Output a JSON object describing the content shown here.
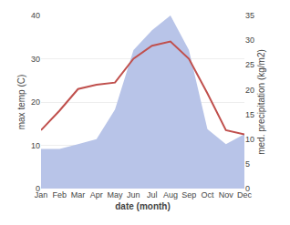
{
  "chart_data": {
    "type": "line",
    "categories": [
      "Jan",
      "Feb",
      "Mar",
      "Apr",
      "May",
      "Jun",
      "Jul",
      "Aug",
      "Sep",
      "Oct",
      "Nov",
      "Dec"
    ],
    "xlabel": "date (month)",
    "ylabel": "max temp (C)",
    "y2label": "med. precipitation (kg/m2)",
    "series": [
      {
        "type": "area",
        "axis": "y2",
        "color": "#b8c4e8",
        "values": [
          8,
          8,
          9,
          10,
          16,
          28,
          32,
          35,
          28,
          12,
          9,
          11
        ]
      },
      {
        "type": "line",
        "color": "#c0504d",
        "values": [
          13.5,
          18,
          23,
          24,
          24.5,
          30,
          33,
          34,
          30,
          22,
          13.5,
          12.5
        ]
      }
    ],
    "ylim": [
      0,
      40
    ],
    "yticks": [
      0,
      10,
      20,
      30,
      40
    ],
    "y2lim": [
      0,
      35
    ],
    "y2ticks": [
      0,
      5,
      10,
      15,
      20,
      25,
      30,
      35
    ],
    "grid": true
  }
}
